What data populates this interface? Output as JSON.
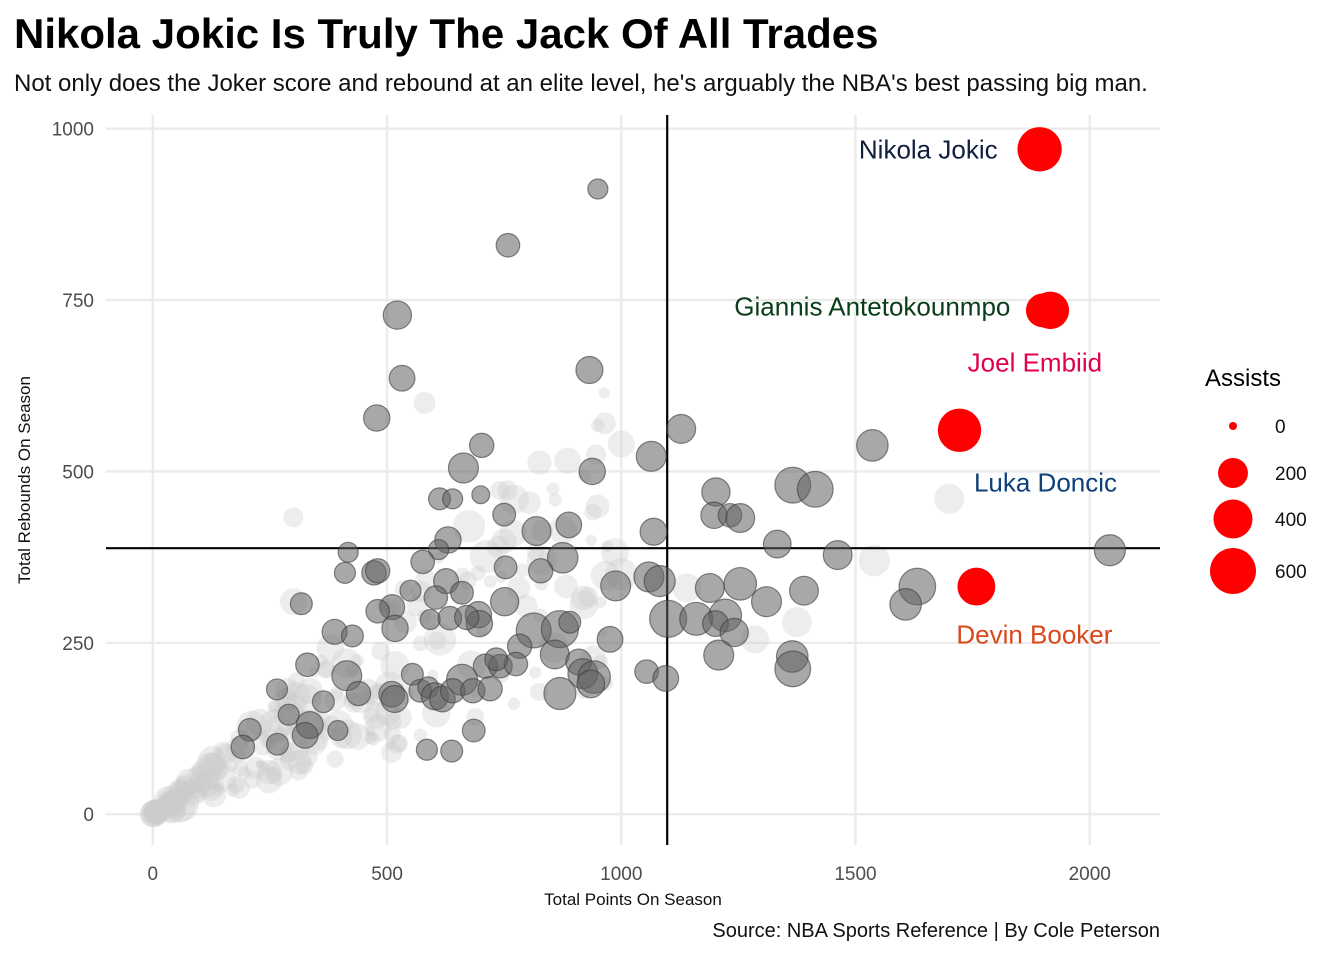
{
  "chart_data": {
    "type": "scatter",
    "title": "Nikola Jokic Is Truly The Jack Of All Trades",
    "subtitle": "Not only does the Joker score and rebound at an elite level, he's arguably the NBA's best passing big man.",
    "caption": "Source: NBA Sports Reference | By Cole Peterson",
    "xlabel": "Total Points On Season",
    "ylabel": "Total Rebounds On Season",
    "xlim": [
      -100,
      2150
    ],
    "ylim": [
      -45,
      1020
    ],
    "xticks": [
      0,
      500,
      1000,
      1500,
      2000
    ],
    "yticks": [
      0,
      250,
      500,
      750,
      1000
    ],
    "xtick_labels": [
      "0",
      "500",
      "1000",
      "1500",
      "2000"
    ],
    "ytick_labels": [
      "0",
      "250",
      "500",
      "750",
      "1000"
    ],
    "grid": true,
    "reference_lines": {
      "x": 1098,
      "y": 388
    },
    "size_legend": {
      "title": "Assists",
      "placement": "right",
      "values": [
        0,
        200,
        400,
        600
      ],
      "labels": [
        "0",
        "200",
        "400",
        "600"
      ]
    },
    "colors": {
      "highlight": "#ff0000",
      "point": "#606060",
      "faded": "#cccccc"
    },
    "highlighted": [
      {
        "name": "Nikola Jokic",
        "x": 1893,
        "y": 970,
        "assists": 550,
        "label_color": "#0f1f3d"
      },
      {
        "name": "Giannis Antetokounmpo",
        "x": 1916,
        "y": 735,
        "assists": 360,
        "label_color": "#0a3d1a"
      },
      {
        "name": "Joel Embiid",
        "x": 1900,
        "y": 735,
        "assists": 280,
        "label_color": "#e0004d"
      },
      {
        "name": "Luka Doncic",
        "x": 1722,
        "y": 560,
        "assists": 520,
        "label_color": "#0d3f7a"
      },
      {
        "name": "Devin Booker",
        "x": 1758,
        "y": 332,
        "assists": 370,
        "label_color": "#d9481b"
      }
    ],
    "series": [
      {
        "name": "Other players",
        "points": [
          [
            950,
            912,
            60
          ],
          [
            758,
            830,
            100
          ],
          [
            522,
            728,
            170
          ],
          [
            532,
            636,
            130
          ],
          [
            478,
            578,
            140
          ],
          [
            932,
            648,
            150
          ],
          [
            1128,
            562,
            180
          ],
          [
            1536,
            538,
            230
          ],
          [
            1064,
            522,
            200
          ],
          [
            663,
            505,
            200
          ],
          [
            702,
            538,
            110
          ],
          [
            612,
            460,
            80
          ],
          [
            640,
            460,
            60
          ],
          [
            700,
            466,
            40
          ],
          [
            938,
            500,
            140
          ],
          [
            1202,
            470,
            170
          ],
          [
            1198,
            436,
            140
          ],
          [
            1232,
            436,
            100
          ],
          [
            1254,
            432,
            180
          ],
          [
            1366,
            480,
            320
          ],
          [
            1414,
            474,
            320
          ],
          [
            819,
            413,
            180
          ],
          [
            888,
            422,
            130
          ],
          [
            1069,
            412,
            150
          ],
          [
            750,
            437,
            90
          ],
          [
            630,
            400,
            140
          ],
          [
            417,
            382,
            60
          ],
          [
            610,
            386,
            60
          ],
          [
            875,
            374,
            210
          ],
          [
            1333,
            394,
            160
          ],
          [
            1462,
            378,
            180
          ],
          [
            2043,
            385,
            220
          ],
          [
            753,
            360,
            90
          ],
          [
            828,
            355,
            110
          ],
          [
            410,
            352,
            70
          ],
          [
            472,
            352,
            110
          ],
          [
            480,
            355,
            110
          ],
          [
            576,
            368,
            100
          ],
          [
            626,
            340,
            120
          ],
          [
            1059,
            346,
            200
          ],
          [
            1082,
            340,
            220
          ],
          [
            988,
            333,
            200
          ],
          [
            1189,
            330,
            180
          ],
          [
            1254,
            336,
            250
          ],
          [
            1390,
            326,
            180
          ],
          [
            1632,
            332,
            340
          ],
          [
            1607,
            306,
            230
          ],
          [
            1310,
            310,
            200
          ],
          [
            317,
            307,
            80
          ],
          [
            550,
            326,
            70
          ],
          [
            604,
            316,
            100
          ],
          [
            660,
            323,
            90
          ],
          [
            511,
            302,
            120
          ],
          [
            480,
            296,
            100
          ],
          [
            751,
            310,
            170
          ],
          [
            695,
            291,
            140
          ],
          [
            697,
            278,
            140
          ],
          [
            592,
            284,
            60
          ],
          [
            634,
            286,
            100
          ],
          [
            670,
            287,
            110
          ],
          [
            388,
            266,
            120
          ],
          [
            426,
            260,
            80
          ],
          [
            517,
            271,
            140
          ],
          [
            1100,
            285,
            350
          ],
          [
            1160,
            285,
            260
          ],
          [
            1222,
            290,
            250
          ],
          [
            1201,
            278,
            130
          ],
          [
            1241,
            265,
            170
          ],
          [
            813,
            268,
            300
          ],
          [
            869,
            270,
            350
          ],
          [
            890,
            280,
            80
          ],
          [
            976,
            255,
            130
          ],
          [
            783,
            245,
            110
          ],
          [
            858,
            233,
            180
          ],
          [
            909,
            222,
            130
          ],
          [
            1365,
            230,
            230
          ],
          [
            1208,
            232,
            200
          ],
          [
            330,
            218,
            100
          ],
          [
            414,
            202,
            200
          ],
          [
            554,
            204,
            80
          ],
          [
            710,
            216,
            110
          ],
          [
            742,
            216,
            100
          ],
          [
            775,
            219,
            100
          ],
          [
            733,
            226,
            90
          ],
          [
            1054,
            208,
            100
          ],
          [
            1095,
            198,
            130
          ],
          [
            1366,
            212,
            320
          ],
          [
            918,
            205,
            200
          ],
          [
            942,
            200,
            250
          ],
          [
            935,
            190,
            160
          ],
          [
            510,
            175,
            130
          ],
          [
            516,
            168,
            150
          ],
          [
            571,
            180,
            90
          ],
          [
            588,
            185,
            70
          ],
          [
            660,
            196,
            220
          ],
          [
            602,
            172,
            150
          ],
          [
            618,
            168,
            130
          ],
          [
            640,
            180,
            110
          ],
          [
            683,
            180,
            110
          ],
          [
            720,
            183,
            110
          ],
          [
            869,
            176,
            240
          ],
          [
            439,
            176,
            110
          ],
          [
            265,
            182,
            70
          ],
          [
            364,
            164,
            80
          ],
          [
            290,
            145,
            70
          ],
          [
            335,
            130,
            150
          ],
          [
            325,
            115,
            130
          ],
          [
            207,
            123,
            90
          ],
          [
            395,
            122,
            60
          ],
          [
            266,
            102,
            80
          ],
          [
            192,
            98,
            100
          ],
          [
            685,
            122,
            90
          ],
          [
            585,
            94,
            70
          ],
          [
            638,
            92,
            80
          ]
        ]
      }
    ]
  }
}
